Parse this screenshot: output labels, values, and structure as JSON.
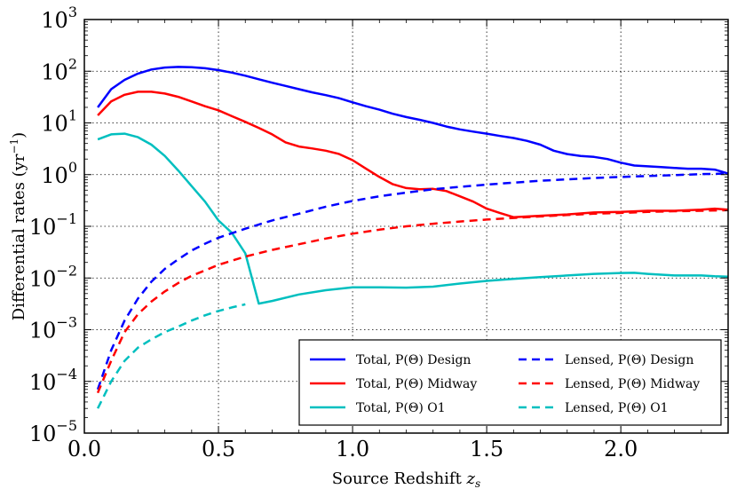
{
  "chart_data": {
    "type": "line",
    "title": "",
    "xlabel": "Source Redshift z_s",
    "xlabel_main": "Source Redshift ",
    "xlabel_var": "z",
    "xlabel_sub": "s",
    "ylabel": "Differential rates (yr⁻¹)",
    "ylabel_main": "Differential rates (yr",
    "ylabel_sup": "−1",
    "ylabel_end": ")",
    "xlim": [
      0.0,
      2.4
    ],
    "ylim": [
      1e-05,
      1000
    ],
    "yscale": "log",
    "grid": true,
    "legend_position": "lower-right",
    "x_ticks": [
      {
        "value": 0.0,
        "label": "0.0"
      },
      {
        "value": 0.5,
        "label": "0.5"
      },
      {
        "value": 1.0,
        "label": "1.0"
      },
      {
        "value": 1.5,
        "label": "1.5"
      },
      {
        "value": 2.0,
        "label": "2.0"
      }
    ],
    "y_ticks": [
      {
        "exp": -5,
        "base": "10",
        "sup": "−5"
      },
      {
        "exp": -4,
        "base": "10",
        "sup": "−4"
      },
      {
        "exp": -3,
        "base": "10",
        "sup": "−3"
      },
      {
        "exp": -2,
        "base": "10",
        "sup": "−2"
      },
      {
        "exp": -1,
        "base": "10",
        "sup": "−1"
      },
      {
        "exp": 0,
        "base": "10",
        "sup": "0"
      },
      {
        "exp": 1,
        "base": "10",
        "sup": "1"
      },
      {
        "exp": 2,
        "base": "10",
        "sup": "2"
      },
      {
        "exp": 3,
        "base": "10",
        "sup": "3"
      }
    ],
    "series": [
      {
        "name": "Total, P(Θ) Design",
        "color": "#0000ff",
        "dash": "solid",
        "points": [
          [
            0.05,
            20
          ],
          [
            0.1,
            45
          ],
          [
            0.15,
            68
          ],
          [
            0.2,
            90
          ],
          [
            0.25,
            108
          ],
          [
            0.3,
            118
          ],
          [
            0.35,
            121
          ],
          [
            0.4,
            119
          ],
          [
            0.45,
            114
          ],
          [
            0.5,
            105
          ],
          [
            0.55,
            94
          ],
          [
            0.6,
            82
          ],
          [
            0.65,
            70
          ],
          [
            0.7,
            60
          ],
          [
            0.75,
            52
          ],
          [
            0.8,
            45
          ],
          [
            0.85,
            39
          ],
          [
            0.9,
            34.5
          ],
          [
            0.95,
            30
          ],
          [
            1.0,
            25
          ],
          [
            1.05,
            21
          ],
          [
            1.1,
            18
          ],
          [
            1.15,
            15
          ],
          [
            1.2,
            13
          ],
          [
            1.25,
            11.5
          ],
          [
            1.3,
            10
          ],
          [
            1.35,
            8.5
          ],
          [
            1.4,
            7.5
          ],
          [
            1.45,
            6.8
          ],
          [
            1.5,
            6.2
          ],
          [
            1.55,
            5.6
          ],
          [
            1.6,
            5.1
          ],
          [
            1.65,
            4.5
          ],
          [
            1.7,
            3.8
          ],
          [
            1.75,
            2.9
          ],
          [
            1.8,
            2.5
          ],
          [
            1.85,
            2.3
          ],
          [
            1.9,
            2.2
          ],
          [
            1.95,
            2.0
          ],
          [
            2.0,
            1.7
          ],
          [
            2.05,
            1.5
          ],
          [
            2.1,
            1.45
          ],
          [
            2.15,
            1.4
          ],
          [
            2.2,
            1.35
          ],
          [
            2.25,
            1.3
          ],
          [
            2.3,
            1.3
          ],
          [
            2.35,
            1.25
          ],
          [
            2.4,
            1.05
          ]
        ]
      },
      {
        "name": "Total, P(Θ) Midway",
        "color": "#ff0000",
        "dash": "solid",
        "points": [
          [
            0.05,
            14
          ],
          [
            0.1,
            26
          ],
          [
            0.15,
            35
          ],
          [
            0.2,
            40
          ],
          [
            0.25,
            40
          ],
          [
            0.3,
            37
          ],
          [
            0.35,
            32
          ],
          [
            0.4,
            26
          ],
          [
            0.45,
            21
          ],
          [
            0.5,
            17.5
          ],
          [
            0.55,
            13.5
          ],
          [
            0.6,
            10.5
          ],
          [
            0.65,
            8
          ],
          [
            0.7,
            6
          ],
          [
            0.75,
            4.2
          ],
          [
            0.8,
            3.5
          ],
          [
            0.85,
            3.2
          ],
          [
            0.9,
            2.9
          ],
          [
            0.95,
            2.5
          ],
          [
            1.0,
            1.9
          ],
          [
            1.05,
            1.3
          ],
          [
            1.1,
            0.9
          ],
          [
            1.15,
            0.65
          ],
          [
            1.2,
            0.55
          ],
          [
            1.25,
            0.52
          ],
          [
            1.3,
            0.53
          ],
          [
            1.35,
            0.48
          ],
          [
            1.4,
            0.38
          ],
          [
            1.45,
            0.3
          ],
          [
            1.5,
            0.22
          ],
          [
            1.55,
            0.18
          ],
          [
            1.6,
            0.15
          ],
          [
            1.7,
            0.16
          ],
          [
            1.8,
            0.17
          ],
          [
            1.9,
            0.185
          ],
          [
            2.0,
            0.19
          ],
          [
            2.1,
            0.2
          ],
          [
            2.2,
            0.2
          ],
          [
            2.3,
            0.21
          ],
          [
            2.35,
            0.22
          ],
          [
            2.4,
            0.21
          ]
        ]
      },
      {
        "name": "Total, P(Θ) O1",
        "color": "#00bfbf",
        "dash": "solid",
        "points": [
          [
            0.05,
            4.8
          ],
          [
            0.1,
            6
          ],
          [
            0.15,
            6.2
          ],
          [
            0.2,
            5.3
          ],
          [
            0.25,
            3.8
          ],
          [
            0.3,
            2.3
          ],
          [
            0.35,
            1.2
          ],
          [
            0.4,
            0.6
          ],
          [
            0.45,
            0.3
          ],
          [
            0.5,
            0.13
          ],
          [
            0.55,
            0.075
          ],
          [
            0.6,
            0.03
          ],
          [
            0.65,
            0.0032
          ],
          [
            0.7,
            0.0036
          ],
          [
            0.8,
            0.0048
          ],
          [
            0.9,
            0.0058
          ],
          [
            1.0,
            0.0066
          ],
          [
            1.1,
            0.0066
          ],
          [
            1.2,
            0.0065
          ],
          [
            1.3,
            0.0068
          ],
          [
            1.4,
            0.0078
          ],
          [
            1.5,
            0.0088
          ],
          [
            1.6,
            0.0096
          ],
          [
            1.7,
            0.0104
          ],
          [
            1.8,
            0.0112
          ],
          [
            1.9,
            0.012
          ],
          [
            2.0,
            0.0125
          ],
          [
            2.05,
            0.0126
          ],
          [
            2.1,
            0.012
          ],
          [
            2.2,
            0.0112
          ],
          [
            2.3,
            0.0112
          ],
          [
            2.35,
            0.0108
          ],
          [
            2.4,
            0.0106
          ]
        ]
      },
      {
        "name": "Lensed, P(Θ) Design",
        "color": "#0000ff",
        "dash": "dashed",
        "points": [
          [
            0.05,
            7e-05
          ],
          [
            0.1,
            0.0004
          ],
          [
            0.15,
            0.0015
          ],
          [
            0.2,
            0.004
          ],
          [
            0.25,
            0.0085
          ],
          [
            0.3,
            0.015
          ],
          [
            0.35,
            0.023
          ],
          [
            0.4,
            0.034
          ],
          [
            0.45,
            0.046
          ],
          [
            0.5,
            0.06
          ],
          [
            0.6,
            0.09
          ],
          [
            0.7,
            0.13
          ],
          [
            0.8,
            0.175
          ],
          [
            0.9,
            0.24
          ],
          [
            1.0,
            0.31
          ],
          [
            1.1,
            0.38
          ],
          [
            1.2,
            0.45
          ],
          [
            1.3,
            0.52
          ],
          [
            1.4,
            0.58
          ],
          [
            1.5,
            0.64
          ],
          [
            1.6,
            0.7
          ],
          [
            1.7,
            0.76
          ],
          [
            1.8,
            0.81
          ],
          [
            1.9,
            0.86
          ],
          [
            2.0,
            0.9
          ],
          [
            2.1,
            0.94
          ],
          [
            2.2,
            0.98
          ],
          [
            2.3,
            1.02
          ],
          [
            2.4,
            1.05
          ]
        ]
      },
      {
        "name": "Lensed, P(Θ) Midway",
        "color": "#ff0000",
        "dash": "dashed",
        "points": [
          [
            0.05,
            6e-05
          ],
          [
            0.1,
            0.00025
          ],
          [
            0.15,
            0.0009
          ],
          [
            0.2,
            0.002
          ],
          [
            0.25,
            0.0035
          ],
          [
            0.3,
            0.0055
          ],
          [
            0.35,
            0.008
          ],
          [
            0.4,
            0.011
          ],
          [
            0.45,
            0.014
          ],
          [
            0.5,
            0.018
          ],
          [
            0.6,
            0.026
          ],
          [
            0.7,
            0.035
          ],
          [
            0.8,
            0.045
          ],
          [
            0.9,
            0.058
          ],
          [
            1.0,
            0.072
          ],
          [
            1.1,
            0.086
          ],
          [
            1.2,
            0.1
          ],
          [
            1.3,
            0.112
          ],
          [
            1.4,
            0.124
          ],
          [
            1.5,
            0.135
          ],
          [
            1.6,
            0.145
          ],
          [
            1.7,
            0.155
          ],
          [
            1.8,
            0.165
          ],
          [
            1.9,
            0.175
          ],
          [
            2.0,
            0.182
          ],
          [
            2.1,
            0.19
          ],
          [
            2.2,
            0.196
          ],
          [
            2.3,
            0.2
          ],
          [
            2.4,
            0.205
          ]
        ]
      },
      {
        "name": "Lensed, P(Θ) O1",
        "color": "#00bfbf",
        "dash": "dashed",
        "points": [
          [
            0.05,
            3e-05
          ],
          [
            0.1,
            0.0001
          ],
          [
            0.15,
            0.00025
          ],
          [
            0.2,
            0.00045
          ],
          [
            0.25,
            0.00065
          ],
          [
            0.3,
            0.0009
          ],
          [
            0.35,
            0.00115
          ],
          [
            0.4,
            0.0015
          ],
          [
            0.45,
            0.0019
          ],
          [
            0.5,
            0.0023
          ],
          [
            0.55,
            0.0027
          ],
          [
            0.6,
            0.0031
          ]
        ]
      }
    ],
    "legend": {
      "columns": [
        [
          "Total, P(Θ) Design",
          "Total, P(Θ) Midway",
          "Total, P(Θ) O1"
        ],
        [
          "Lensed, P(Θ) Design",
          "Lensed, P(Θ) Midway",
          "Lensed, P(Θ) O1"
        ]
      ]
    }
  }
}
